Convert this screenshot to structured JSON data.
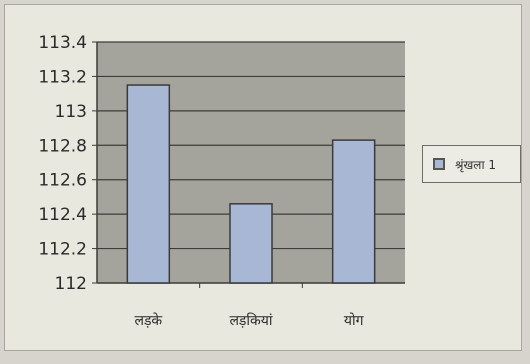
{
  "chart_data": {
    "type": "bar",
    "categories": [
      "लड़के",
      "लड़कियां",
      "योग"
    ],
    "series": [
      {
        "name": "श्रृंखला 1",
        "values": [
          113.15,
          112.46,
          112.83
        ]
      }
    ],
    "title": "",
    "xlabel": "",
    "ylabel": "",
    "ylim": [
      112,
      113.4
    ],
    "yticks": [
      "113.4",
      "113.2",
      "113",
      "112.8",
      "112.6",
      "112.4",
      "112.2",
      "112"
    ],
    "grid": true,
    "legend_position": "right"
  },
  "colors": {
    "bar_fill": "#a8b7d4",
    "bar_stroke": "#3a3a3a",
    "plot_bg": "#a5a49c",
    "gridline": "#3c3c38",
    "text": "#2a2a2a"
  }
}
